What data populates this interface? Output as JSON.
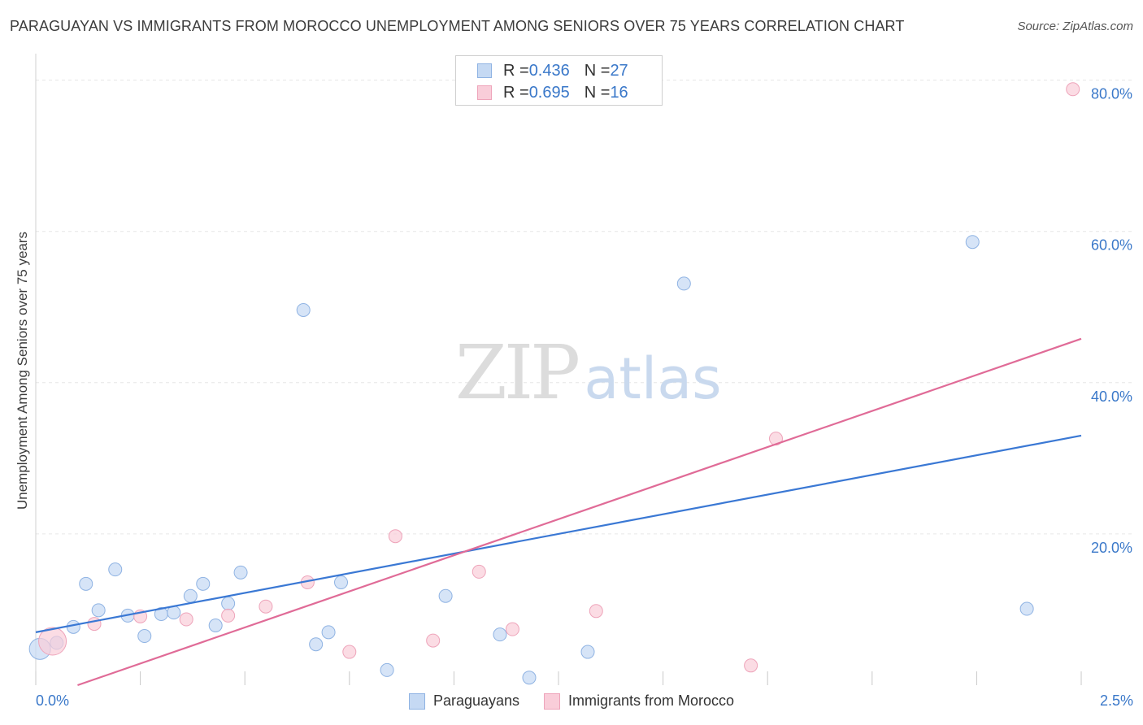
{
  "title": "PARAGUAYAN VS IMMIGRANTS FROM MOROCCO UNEMPLOYMENT AMONG SENIORS OVER 75 YEARS CORRELATION CHART",
  "source": "Source: ZipAtlas.com",
  "watermark": {
    "zip": "ZIP",
    "atlas": "atlas"
  },
  "colors": {
    "blue_fill": "#c5d9f3",
    "blue_stroke": "#8fb3e3",
    "blue_line": "#3a78d4",
    "pink_fill": "#f9cdd9",
    "pink_stroke": "#eea4ba",
    "pink_line": "#e06b97",
    "axis_text": "#3a78c9",
    "grid": "#e6e6e6"
  },
  "legend": {
    "rows": [
      {
        "r_label": "R = ",
        "r_value": "0.436",
        "n_label": "N = ",
        "n_value": "27"
      },
      {
        "r_label": "R = ",
        "r_value": "0.695",
        "n_label": "N = ",
        "n_value": "16"
      }
    ]
  },
  "bottom_legend": {
    "blue": "Paraguayans",
    "pink": "Immigrants from Morocco"
  },
  "chart_data": {
    "type": "scatter",
    "title": "PARAGUAYAN VS IMMIGRANTS FROM MOROCCO UNEMPLOYMENT AMONG SENIORS OVER 75 YEARS CORRELATION CHART",
    "xlabel": "",
    "ylabel": "Unemployment Among Seniors over 75 years",
    "xlim": [
      0,
      2.5
    ],
    "ylim": [
      0,
      82
    ],
    "x_tick_labels": [
      "0.0%",
      "2.5%"
    ],
    "y_ticks": [
      20,
      40,
      60,
      80
    ],
    "y_tick_labels": [
      "20.0%",
      "40.0%",
      "60.0%",
      "80.0%"
    ],
    "grid": true,
    "series": [
      {
        "name": "Paraguayans",
        "color": "blue",
        "points": [
          {
            "x": 0.01,
            "y": 4.8
          },
          {
            "x": 0.05,
            "y": 5.6
          },
          {
            "x": 0.09,
            "y": 7.7
          },
          {
            "x": 0.12,
            "y": 13.4
          },
          {
            "x": 0.15,
            "y": 9.9
          },
          {
            "x": 0.19,
            "y": 15.3
          },
          {
            "x": 0.22,
            "y": 9.2
          },
          {
            "x": 0.26,
            "y": 6.5
          },
          {
            "x": 0.3,
            "y": 9.4
          },
          {
            "x": 0.33,
            "y": 9.6
          },
          {
            "x": 0.37,
            "y": 11.8
          },
          {
            "x": 0.4,
            "y": 13.4
          },
          {
            "x": 0.43,
            "y": 7.9
          },
          {
            "x": 0.46,
            "y": 10.8
          },
          {
            "x": 0.49,
            "y": 14.9
          },
          {
            "x": 0.64,
            "y": 49.6
          },
          {
            "x": 0.67,
            "y": 5.4
          },
          {
            "x": 0.7,
            "y": 7.0
          },
          {
            "x": 0.73,
            "y": 13.6
          },
          {
            "x": 0.84,
            "y": 2.0
          },
          {
            "x": 0.98,
            "y": 11.8
          },
          {
            "x": 1.11,
            "y": 6.7
          },
          {
            "x": 1.18,
            "y": 1.0
          },
          {
            "x": 1.32,
            "y": 4.4
          },
          {
            "x": 1.55,
            "y": 53.1
          },
          {
            "x": 2.24,
            "y": 58.6
          },
          {
            "x": 2.37,
            "y": 10.1
          }
        ],
        "trendline": {
          "x": [
            0,
            2.5
          ],
          "y": [
            7.0,
            33.0
          ]
        }
      },
      {
        "name": "Immigrants from Morocco",
        "color": "pink",
        "points": [
          {
            "x": 0.04,
            "y": 5.8
          },
          {
            "x": 0.14,
            "y": 8.1
          },
          {
            "x": 0.25,
            "y": 9.1
          },
          {
            "x": 0.36,
            "y": 8.7
          },
          {
            "x": 0.46,
            "y": 9.2
          },
          {
            "x": 0.55,
            "y": 10.4
          },
          {
            "x": 0.65,
            "y": 13.6
          },
          {
            "x": 0.75,
            "y": 4.4
          },
          {
            "x": 0.86,
            "y": 19.7
          },
          {
            "x": 0.95,
            "y": 5.9
          },
          {
            "x": 1.06,
            "y": 15.0
          },
          {
            "x": 1.14,
            "y": 7.4
          },
          {
            "x": 1.34,
            "y": 9.8
          },
          {
            "x": 1.71,
            "y": 2.6
          },
          {
            "x": 1.77,
            "y": 32.6
          },
          {
            "x": 2.48,
            "y": 78.8
          }
        ],
        "trendline": {
          "x": [
            0.1,
            2.5
          ],
          "y": [
            0.0,
            45.8
          ]
        }
      }
    ]
  }
}
